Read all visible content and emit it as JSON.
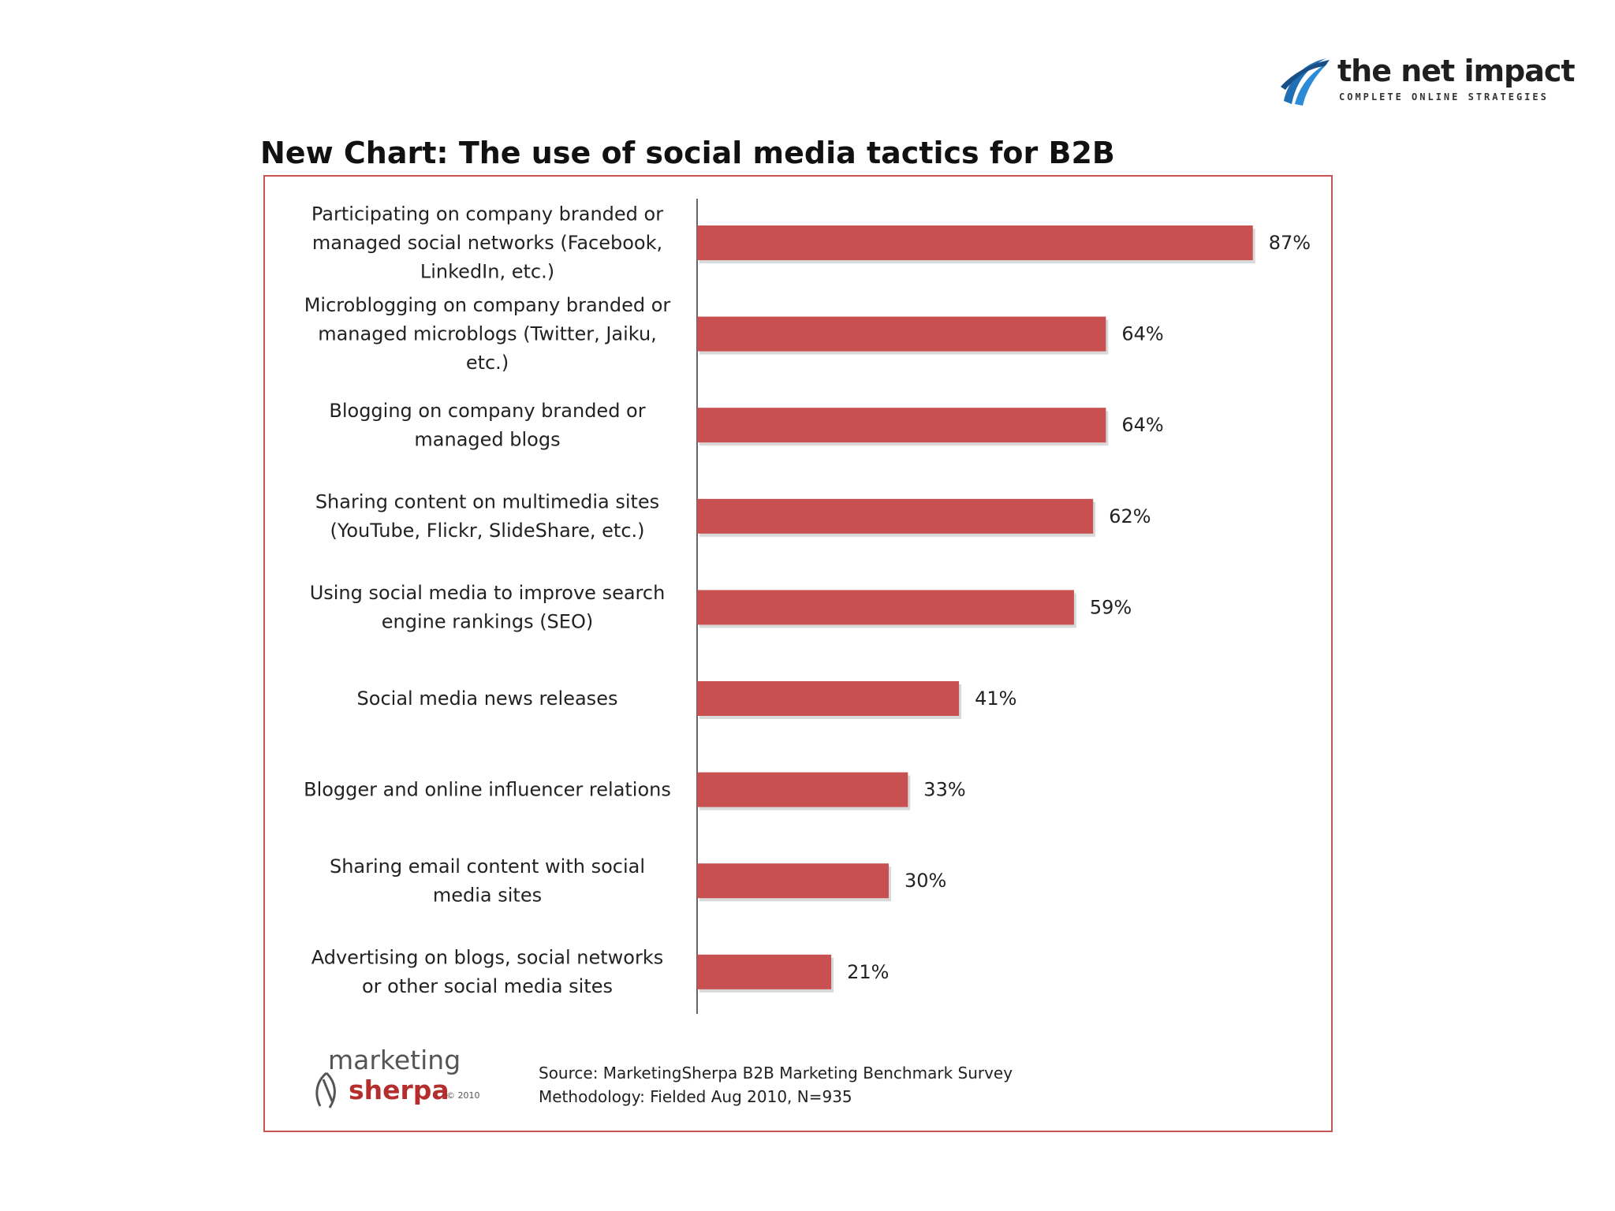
{
  "logo": {
    "name": "the net impact",
    "tagline": "COMPLETE ONLINE STRATEGIES"
  },
  "sherpa_logo": {
    "line1": "marketing",
    "line2": "sherpa",
    "copyright": "© 2010"
  },
  "source": {
    "line1": "Source: MarketingSherpa B2B Marketing Benchmark Survey",
    "line2": "Methodology: Fielded Aug 2010, N=935"
  },
  "colors": {
    "bar": "#c85050",
    "frame": "#c85454"
  },
  "chart_data": {
    "type": "bar",
    "orientation": "horizontal",
    "title": "New Chart: The use of social media tactics for B2B",
    "xlabel": "",
    "ylabel": "",
    "xlim": [
      0,
      100
    ],
    "grid": false,
    "categories": [
      [
        "Participating on company branded or",
        "managed social networks (Facebook,",
        "LinkedIn, etc.)"
      ],
      [
        "Microblogging on company branded or",
        "managed microblogs (Twitter, Jaiku,",
        "etc.)"
      ],
      [
        "Blogging on company branded or",
        "managed blogs"
      ],
      [
        "Sharing content on multimedia sites",
        "(YouTube, Flickr, SlideShare, etc.)"
      ],
      [
        "Using social media to improve search",
        "engine rankings (SEO)"
      ],
      [
        "Social media news releases"
      ],
      [
        "Blogger and online influencer relations"
      ],
      [
        "Sharing email content with social",
        "media sites"
      ],
      [
        "Advertising on blogs, social networks",
        "or other social media sites"
      ]
    ],
    "values": [
      87,
      64,
      64,
      62,
      59,
      41,
      33,
      30,
      21
    ],
    "value_labels": [
      "87%",
      "64%",
      "64%",
      "62%",
      "59%",
      "41%",
      "33%",
      "30%",
      "21%"
    ]
  }
}
